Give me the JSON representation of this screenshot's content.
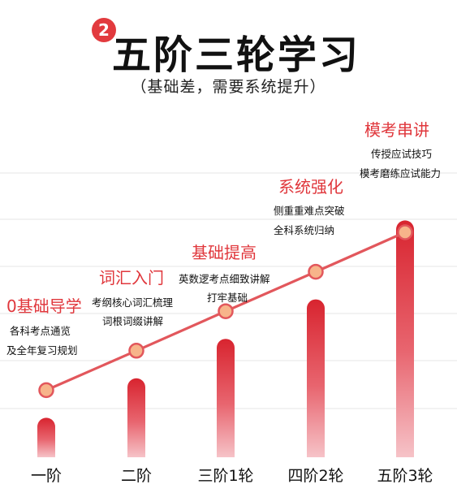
{
  "header": {
    "badge": "2",
    "title": "五阶三轮学习",
    "subtitle": "（基础差，需要系统提升）"
  },
  "colors": {
    "accent": "#e0373c",
    "bar_top": "#d8242f",
    "bar_bottom": "#f4b6bc",
    "line": "#e2575c",
    "marker_fill": "#f7b48a"
  },
  "chart_data": {
    "type": "bar",
    "categories": [
      "一阶",
      "二阶",
      "三阶1轮",
      "四阶2轮",
      "五阶3轮"
    ],
    "values": [
      1,
      2,
      3,
      4,
      6
    ],
    "line_values": [
      1,
      2,
      3,
      4,
      5
    ],
    "ylim": [
      0,
      6.4
    ],
    "grid": true,
    "stages": [
      {
        "title": "0基础导学",
        "desc": [
          "各科考点通览",
          "及全年复习规划"
        ]
      },
      {
        "title": "词汇入门",
        "desc": [
          "考纲核心词汇梳理",
          "词根词缀讲解"
        ]
      },
      {
        "title": "基础提高",
        "desc": [
          "英数逻考点细致讲解",
          "打牢基础"
        ]
      },
      {
        "title": "系统强化",
        "desc": [
          "侧重重难点突破",
          "全科系统归纳"
        ]
      },
      {
        "title": "模考串讲",
        "desc": [
          "传授应试技巧",
          "模考磨练应试能力"
        ]
      }
    ]
  }
}
